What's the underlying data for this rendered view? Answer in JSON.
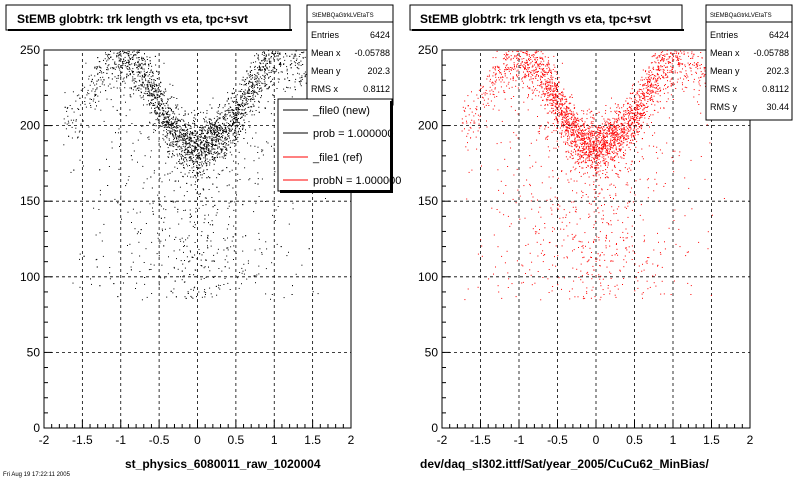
{
  "panels": [
    {
      "title": "StEMB globtrk: trk length vs eta, tpc+svt",
      "stats": {
        "name": "StEMBQaGtrkLVEtaTS",
        "rows": [
          {
            "label": "Entries",
            "value": "6424"
          },
          {
            "label": "Mean x",
            "value": "-0.05788"
          },
          {
            "label": "Mean y",
            "value": "202.3"
          },
          {
            "label": "RMS x",
            "value": "0.8112"
          }
        ]
      },
      "legend": [
        {
          "label": "_file0 (new)",
          "color": "#000000"
        },
        {
          "label": "prob = 1.000000",
          "color": "#000000"
        },
        {
          "label": "_file1 (ref)",
          "color": "#ff0000"
        },
        {
          "label": "probN = 1.000000",
          "color": "#ff0000"
        }
      ],
      "footer": "st_physics_6080011_raw_1020004",
      "bottom_left_text": "Fri Aug 19 17:22:11 2005"
    },
    {
      "title": "StEMB globtrk: trk length vs eta, tpc+svt",
      "stats": {
        "name": "StEMBQaGtrkLVEtaTS",
        "rows": [
          {
            "label": "Entries",
            "value": "6424"
          },
          {
            "label": "Mean x",
            "value": "-0.05788"
          },
          {
            "label": "Mean y",
            "value": "202.3"
          },
          {
            "label": "RMS x",
            "value": "0.8112"
          },
          {
            "label": "RMS y",
            "value": "30.44"
          }
        ]
      },
      "footer": "dev/daq_sl302.ittf/Sat/year_2005/CuCu62_MinBias/"
    }
  ],
  "chart_data": [
    {
      "type": "scatter",
      "series": [
        {
          "name": "_file0 (new)",
          "color": "#000000"
        }
      ],
      "x_ticks": [
        "-2",
        "-1.5",
        "-1",
        "-0.5",
        "0",
        "0.5",
        "1",
        "1.5",
        "2"
      ],
      "y_ticks": [
        "0",
        "50",
        "100",
        "150",
        "200",
        "250"
      ],
      "xlim": [
        -2,
        2
      ],
      "ylim": [
        0,
        250
      ],
      "grid": true,
      "density_profile": {
        "eta": [
          -1.6,
          -1.4,
          -1.2,
          -1.0,
          -0.8,
          -0.6,
          -0.4,
          -0.2,
          0.0,
          0.2,
          0.4,
          0.6,
          0.8,
          1.0,
          1.2,
          1.4,
          1.6
        ],
        "ridge_length": [
          205,
          225,
          240,
          245,
          240,
          225,
          205,
          190,
          185,
          190,
          200,
          215,
          235,
          245,
          248,
          240,
          220
        ]
      }
    },
    {
      "type": "scatter",
      "series": [
        {
          "name": "_file1 (ref)",
          "color": "#ff0000"
        }
      ],
      "x_ticks": [
        "-2",
        "-1.5",
        "-1",
        "-0.5",
        "0",
        "0.5",
        "1",
        "1.5",
        "2"
      ],
      "y_ticks": [
        "0",
        "50",
        "100",
        "150",
        "200",
        "250"
      ],
      "xlim": [
        -2,
        2
      ],
      "ylim": [
        0,
        250
      ],
      "grid": true,
      "density_profile": {
        "eta": [
          -1.6,
          -1.4,
          -1.2,
          -1.0,
          -0.8,
          -0.6,
          -0.4,
          -0.2,
          0.0,
          0.2,
          0.4,
          0.6,
          0.8,
          1.0,
          1.2,
          1.4,
          1.6
        ],
        "ridge_length": [
          205,
          225,
          240,
          245,
          240,
          225,
          205,
          190,
          185,
          190,
          200,
          215,
          235,
          245,
          248,
          240,
          220
        ]
      }
    }
  ]
}
